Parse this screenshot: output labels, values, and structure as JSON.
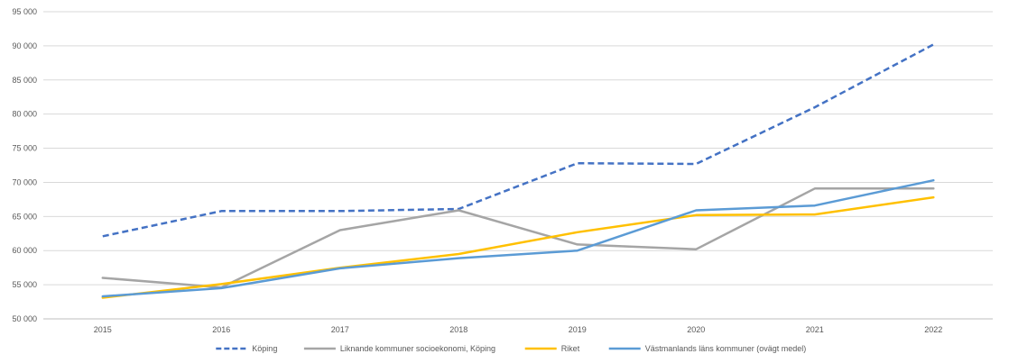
{
  "chart_data": {
    "type": "line",
    "title": "",
    "xlabel": "",
    "ylabel": "",
    "categories": [
      "2015",
      "2016",
      "2017",
      "2018",
      "2019",
      "2020",
      "2021",
      "2022"
    ],
    "ylim": [
      50000,
      95000
    ],
    "yticks": [
      50000,
      55000,
      60000,
      65000,
      70000,
      75000,
      80000,
      85000,
      90000,
      95000
    ],
    "ytick_labels": [
      "50 000",
      "55 000",
      "60 000",
      "65 000",
      "70 000",
      "75 000",
      "80 000",
      "85 000",
      "90 000",
      "95 000"
    ],
    "grid": "horizontal",
    "legend_position": "bottom",
    "series": [
      {
        "name": "Köping",
        "color": "#4472C4",
        "dash": true,
        "values": [
          62100,
          65800,
          65800,
          66100,
          72800,
          72700,
          81000,
          90200
        ]
      },
      {
        "name": "Liknande kommuner socioekonomi, Köping",
        "color": "#A5A5A5",
        "dash": false,
        "values": [
          56000,
          54600,
          63000,
          65900,
          60900,
          60200,
          69100,
          69100
        ]
      },
      {
        "name": "Riket",
        "color": "#FFC000",
        "dash": false,
        "values": [
          53100,
          55100,
          57500,
          59500,
          62700,
          65200,
          65300,
          67800
        ]
      },
      {
        "name": "Västmanlands läns kommuner (ovägt medel)",
        "color": "#5B9BD5",
        "dash": false,
        "values": [
          53300,
          54500,
          57400,
          58900,
          60000,
          65900,
          66600,
          70300
        ]
      }
    ]
  }
}
